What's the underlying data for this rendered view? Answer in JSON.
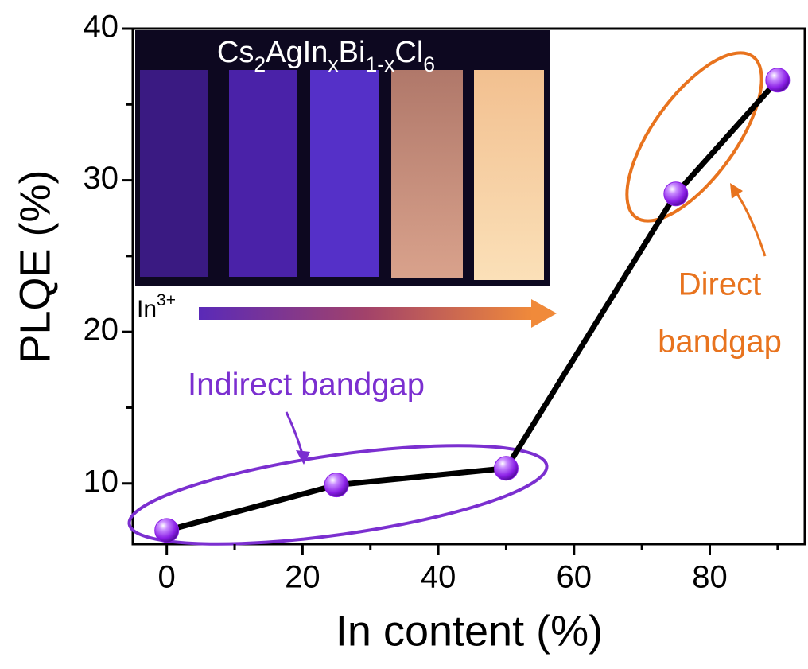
{
  "chart_data": {
    "type": "line",
    "x_label": "In content (%)",
    "y_label": "PLQE (%)",
    "x": [
      0,
      25,
      50,
      75,
      90
    ],
    "values": [
      6.9,
      9.9,
      11.0,
      29.1,
      36.6
    ],
    "color": "#000000",
    "marker_color": "#8a1ee6",
    "xlim": [
      -5,
      94
    ],
    "xticks": [
      0,
      20,
      40,
      60,
      80
    ],
    "xminorticks": [
      10,
      30,
      50,
      70,
      90
    ],
    "ylim": [
      6,
      40
    ],
    "yticks": [
      10,
      20,
      30,
      40
    ],
    "yminorticks": [
      15,
      25,
      35
    ],
    "inset_title": [
      "Cs",
      "2",
      "AgIn",
      "x",
      "Bi",
      "1-x",
      "Cl",
      "6"
    ],
    "arrow_label": [
      "In",
      "3+"
    ],
    "annotations": [
      {
        "text": [
          "Indirect bandgap"
        ],
        "color": "#7b2fd0"
      },
      {
        "text": [
          "Direct",
          "bandgap"
        ],
        "color": "#e8731e"
      }
    ]
  }
}
